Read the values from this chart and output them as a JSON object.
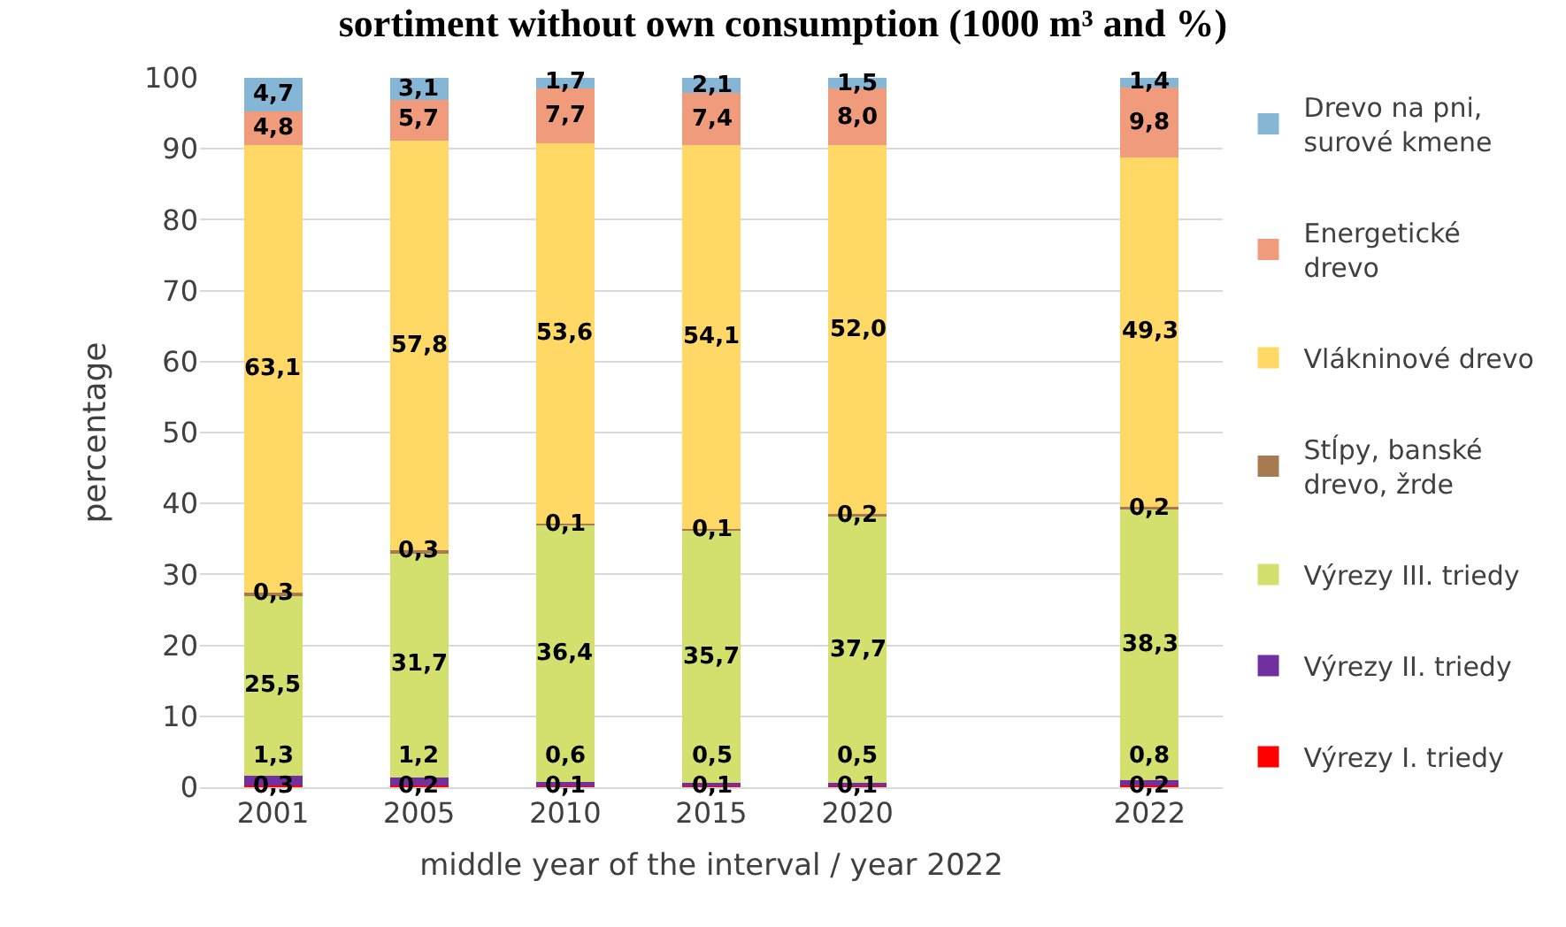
{
  "chart_data": {
    "type": "bar",
    "title": "sortiment without own consumption (1000 m³ and %)",
    "xlabel": "middle year of the interval / year 2022",
    "ylabel": "percentage",
    "categories": [
      "2001",
      "2005",
      "2010",
      "2015",
      "2020",
      null,
      "2022"
    ],
    "stacked": true,
    "ylim": [
      0,
      100
    ],
    "yticks": [
      0,
      10,
      20,
      30,
      40,
      50,
      60,
      70,
      80,
      90,
      100
    ],
    "grid": "y",
    "legend": "right",
    "series": [
      {
        "name": "Výrezy I. triedy",
        "color": "#ff0000",
        "values": [
          0.3,
          0.2,
          0.1,
          0.1,
          0.1,
          null,
          0.2
        ],
        "value_labels": [
          "0,3",
          "0,2",
          "0,1",
          "0,1",
          "0,1",
          null,
          "0,2"
        ]
      },
      {
        "name": "Výrezy II. triedy",
        "color": "#7030a0",
        "values": [
          1.3,
          1.2,
          0.6,
          0.5,
          0.5,
          null,
          0.8
        ],
        "value_labels": [
          "1,3",
          "1,2",
          "0,6",
          "0,5",
          "0,5",
          null,
          "0,8"
        ]
      },
      {
        "name": "Výrezy III. triedy",
        "color": "#d4e06e",
        "values": [
          25.5,
          31.7,
          36.4,
          35.7,
          37.7,
          null,
          38.3
        ],
        "value_labels": [
          "25,5",
          "31,7",
          "36,4",
          "35,7",
          "37,7",
          null,
          "38,3"
        ]
      },
      {
        "name": "Stĺpy, banské drevo, žrde",
        "color": "#a67b52",
        "values": [
          0.3,
          0.3,
          0.1,
          0.1,
          0.2,
          null,
          0.2
        ],
        "value_labels": [
          "0,3",
          "0,3",
          "0,1",
          "0,1",
          "0,2",
          null,
          "0,2"
        ]
      },
      {
        "name": "Vlákninové drevo",
        "color": "#ffd866",
        "values": [
          63.1,
          57.8,
          53.6,
          54.1,
          52.0,
          null,
          49.3
        ],
        "value_labels": [
          "63,1",
          "57,8",
          "53,6",
          "54,1",
          "52,0",
          null,
          "49,3"
        ]
      },
      {
        "name": "Energetické drevo",
        "color": "#f09c7c",
        "values": [
          4.8,
          5.7,
          7.7,
          7.4,
          8.0,
          null,
          9.8
        ],
        "value_labels": [
          "4,8",
          "5,7",
          "7,7",
          "7,4",
          "8,0",
          null,
          "9,8"
        ]
      },
      {
        "name": "Drevo na pni, surové kmene",
        "color": "#85b6d6",
        "values": [
          4.7,
          3.1,
          1.7,
          2.1,
          1.5,
          null,
          1.4
        ],
        "value_labels": [
          "4,7",
          "3,1",
          "1,7",
          "2,1",
          "1,5",
          null,
          "1,4"
        ]
      }
    ]
  }
}
